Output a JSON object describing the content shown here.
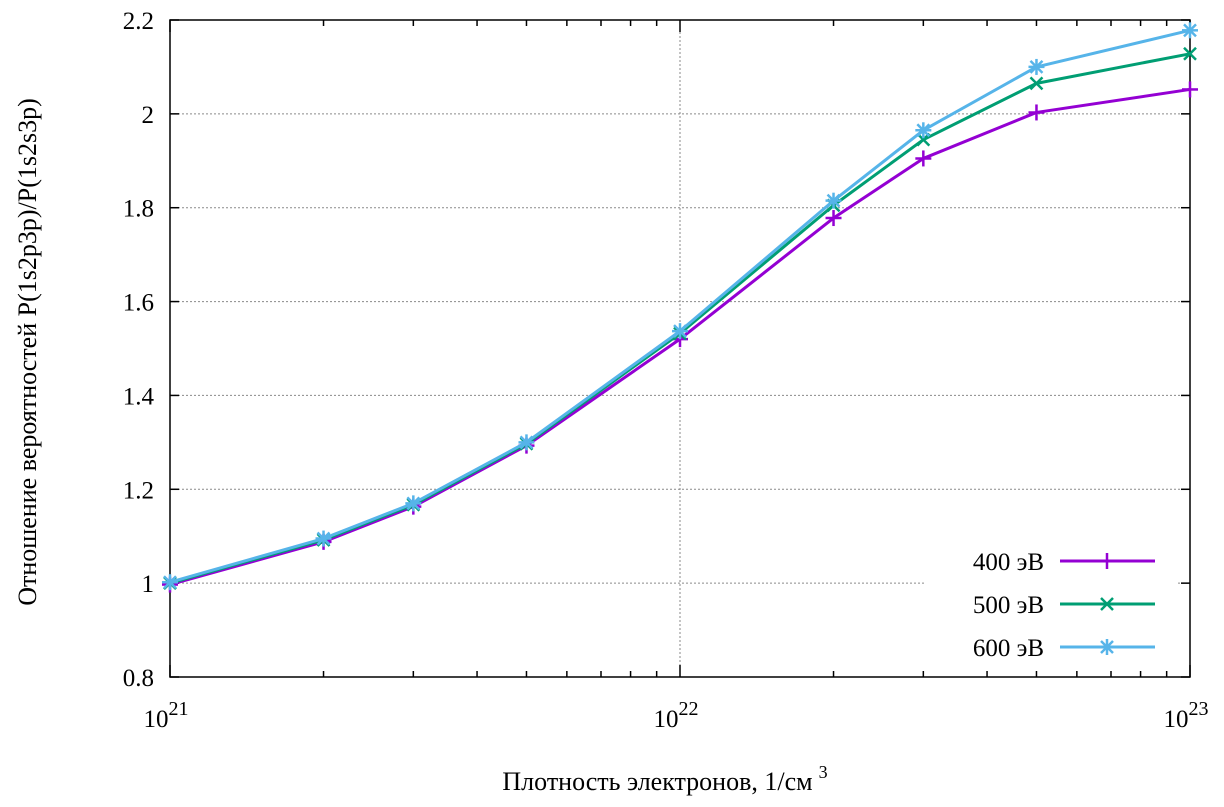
{
  "chart_data": {
    "type": "line",
    "xlabel": "Плотность электронов, 1/см",
    "xlabel_superscript": "3",
    "ylabel": "Отношение вероятностей P(1s2p3p)/P(1s2s3p)",
    "x_scale": "log",
    "xlim": [
      1e+21,
      1e+23
    ],
    "ylim": [
      0.8,
      2.2
    ],
    "grid": true,
    "legend_position": "bottom-right",
    "x_ticks": [
      {
        "value": 1e+21,
        "base": "10",
        "exp": "21"
      },
      {
        "value": 1e+22,
        "base": "10",
        "exp": "22"
      },
      {
        "value": 1e+23,
        "base": "10",
        "exp": "23"
      }
    ],
    "y_ticks": [
      {
        "value": 0.8,
        "label": "0.8"
      },
      {
        "value": 1.0,
        "label": "1"
      },
      {
        "value": 1.2,
        "label": "1.2"
      },
      {
        "value": 1.4,
        "label": "1.4"
      },
      {
        "value": 1.6,
        "label": "1.6"
      },
      {
        "value": 1.8,
        "label": "1.8"
      },
      {
        "value": 2.0,
        "label": "2"
      },
      {
        "value": 2.2,
        "label": "2.2"
      }
    ],
    "x": [
      1e+21,
      2e+21,
      3e+21,
      5e+21,
      1e+22,
      2e+22,
      3e+22,
      5e+22,
      1e+23
    ],
    "series": [
      {
        "name": "400 эВ",
        "color": "#9400d3",
        "marker": "plus",
        "values": [
          0.997,
          1.088,
          1.163,
          1.293,
          1.52,
          1.778,
          1.905,
          2.003,
          2.052
        ]
      },
      {
        "name": "500 эВ",
        "color": "#009e73",
        "marker": "cross",
        "values": [
          1.0,
          1.092,
          1.167,
          1.297,
          1.532,
          1.805,
          1.945,
          2.065,
          2.128
        ]
      },
      {
        "name": "600 эВ",
        "color": "#56b4e9",
        "marker": "star",
        "values": [
          1.002,
          1.095,
          1.17,
          1.3,
          1.537,
          1.815,
          1.965,
          2.1,
          2.178
        ]
      }
    ]
  }
}
